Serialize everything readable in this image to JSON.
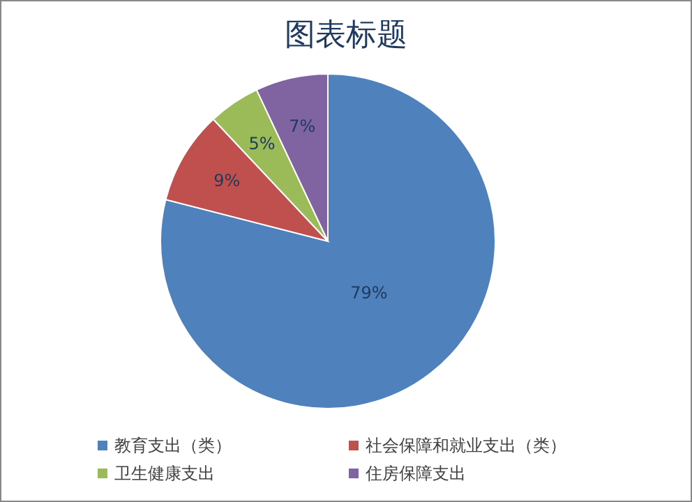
{
  "chart_data": {
    "type": "pie",
    "title": "图表标题",
    "categories": [
      "教育支出（类）",
      "社会保障和就业支出（类）",
      "卫生健康支出",
      "住房保障支出"
    ],
    "values": [
      79,
      9,
      5,
      7
    ],
    "colors": [
      "#4f81bd",
      "#c0504d",
      "#9bbb59",
      "#8064a2"
    ],
    "value_labels": [
      "79%",
      "9%",
      "5%",
      "7%"
    ],
    "legend": "bottom"
  }
}
